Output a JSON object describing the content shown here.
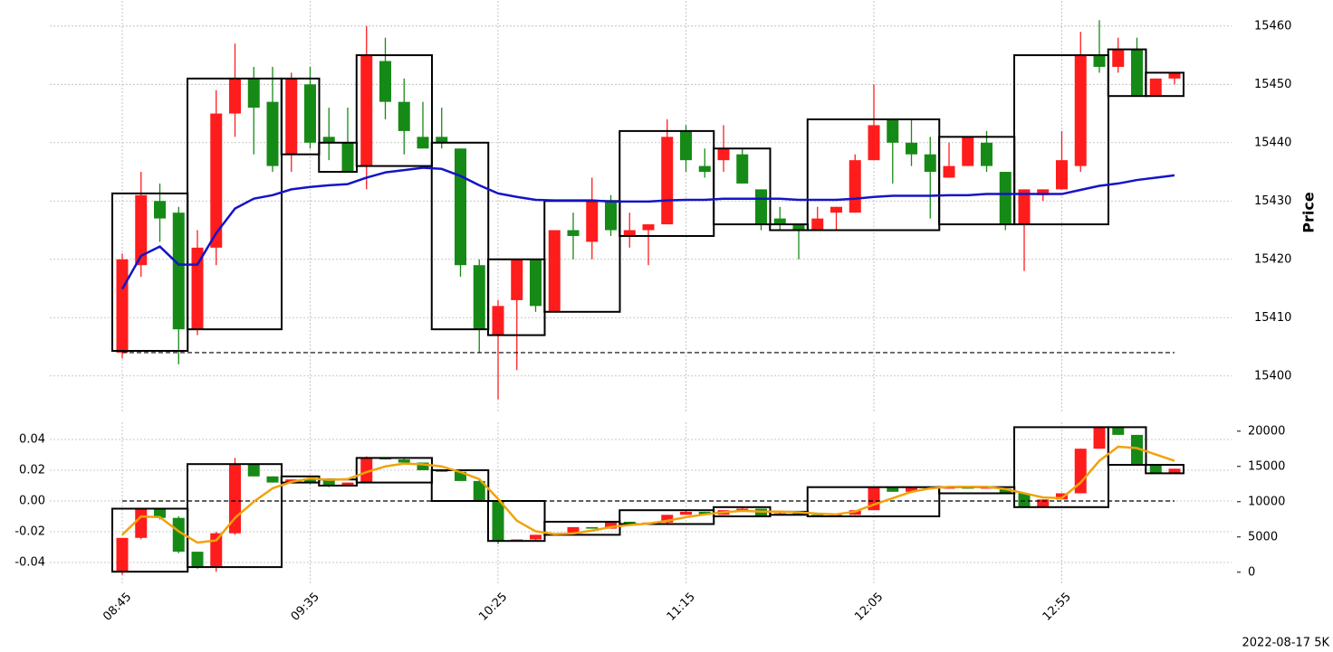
{
  "chart_data": [
    {
      "type": "candlestick",
      "ylabel": "Price",
      "up_color": "#ff1c1c",
      "down_color": "#168a16",
      "ylim": [
        15395,
        15464
      ],
      "yticks": [
        15400,
        15410,
        15420,
        15430,
        15440,
        15450,
        15460
      ],
      "grid": true,
      "ref_line": 15404,
      "open": [
        15404,
        15419,
        15430,
        15428,
        15408,
        15422,
        15445,
        15451,
        15447,
        15438,
        15450,
        15441,
        15440,
        15436,
        15454,
        15447,
        15441,
        15441,
        15439,
        15419,
        15407,
        15413,
        15420,
        15411,
        15425,
        15423,
        15430,
        15424,
        15425,
        15426,
        15442,
        15436,
        15437,
        15438,
        15432,
        15427,
        15426,
        15425,
        15428,
        15428,
        15437,
        15444,
        15440,
        15438,
        15434,
        15436,
        15440,
        15435,
        15426,
        15431,
        15432,
        15436,
        15455,
        15453,
        15456,
        15448,
        15451
      ],
      "high": [
        15421,
        15435,
        15433,
        15429,
        15425,
        15449,
        15457,
        15453,
        15453,
        15452,
        15453,
        15446,
        15446,
        15460,
        15458,
        15451,
        15447,
        15446,
        15439,
        15420,
        15413,
        15420,
        15420,
        15425,
        15428,
        15434,
        15431,
        15428,
        15426,
        15444,
        15443,
        15439,
        15443,
        15439,
        15432,
        15429,
        15426,
        15429,
        15429,
        15438,
        15450,
        15444,
        15444,
        15441,
        15440,
        15441,
        15442,
        15435,
        15432,
        15432,
        15442,
        15459,
        15461,
        15458,
        15458,
        15451,
        15452
      ],
      "low": [
        15403,
        15417,
        15423,
        15402,
        15407,
        15419,
        15441,
        15438,
        15435,
        15435,
        15439,
        15437,
        15435,
        15432,
        15444,
        15438,
        15439,
        15439,
        15417,
        15404,
        15396,
        15401,
        15411,
        15411,
        15420,
        15420,
        15424,
        15422,
        15419,
        15426,
        15435,
        15434,
        15435,
        15433,
        15425,
        15425,
        15420,
        15425,
        15425,
        15428,
        15437,
        15433,
        15436,
        15427,
        15434,
        15436,
        15435,
        15425,
        15418,
        15430,
        15432,
        15435,
        15452,
        15452,
        15448,
        15448,
        15450
      ],
      "close": [
        15420,
        15431,
        15427,
        15408,
        15422,
        15445,
        15451,
        15446,
        15436,
        15451,
        15440,
        15440,
        15435,
        15455,
        15447,
        15442,
        15439,
        15440,
        15419,
        15408,
        15412,
        15420,
        15412,
        15425,
        15424,
        15430,
        15425,
        15425,
        15426,
        15441,
        15437,
        15435,
        15439,
        15433,
        15426,
        15426,
        15425,
        15427,
        15429,
        15437,
        15443,
        15440,
        15438,
        15435,
        15436,
        15441,
        15436,
        15426,
        15432,
        15432,
        15437,
        15455,
        15453,
        15456,
        15448,
        15451,
        15452
      ],
      "series": [
        {
          "color": "#1414c8",
          "values": [
            15414.9,
            15420.6,
            15422.2,
            15419.1,
            15419.1,
            15424.5,
            15428.7,
            15430.4,
            15431,
            15432,
            15432.4,
            15432.7,
            15432.9,
            15434,
            15434.9,
            15435.3,
            15435.7,
            15435.5,
            15434.3,
            15432.7,
            15431.3,
            15430.7,
            15430.2,
            15430.1,
            15430.1,
            15430.1,
            15429.9,
            15429.9,
            15429.9,
            15430.1,
            15430.2,
            15430.2,
            15430.4,
            15430.4,
            15430.4,
            15430.4,
            15430.2,
            15430.2,
            15430.2,
            15430.4,
            15430.7,
            15430.9,
            15430.9,
            15430.9,
            15431,
            15431,
            15431.2,
            15431.2,
            15431.2,
            15431.2,
            15431.2,
            15431.9,
            15432.6,
            15433,
            15433.6,
            15434,
            15434.4
          ]
        }
      ],
      "boxes": [
        {
          "start": 0,
          "end": 3,
          "high": 15431.3,
          "low": 15404.3
        },
        {
          "start": 4,
          "end": 8,
          "high": 15451,
          "low": 15408
        },
        {
          "start": 9,
          "end": 10,
          "high": 15451,
          "low": 15438
        },
        {
          "start": 11,
          "end": 12,
          "high": 15440,
          "low": 15435
        },
        {
          "start": 13,
          "end": 16,
          "high": 15455,
          "low": 15436
        },
        {
          "start": 17,
          "end": 19,
          "high": 15440,
          "low": 15408
        },
        {
          "start": 20,
          "end": 22,
          "high": 15420,
          "low": 15407
        },
        {
          "start": 23,
          "end": 26,
          "high": 15430,
          "low": 15411
        },
        {
          "start": 27,
          "end": 31,
          "high": 15442,
          "low": 15424
        },
        {
          "start": 32,
          "end": 34,
          "high": 15439,
          "low": 15426
        },
        {
          "start": 35,
          "end": 36,
          "high": 15426,
          "low": 15425
        },
        {
          "start": 37,
          "end": 43,
          "high": 15444,
          "low": 15425
        },
        {
          "start": 44,
          "end": 47,
          "high": 15441,
          "low": 15426
        },
        {
          "start": 48,
          "end": 52,
          "high": 15455,
          "low": 15426
        },
        {
          "start": 53,
          "end": 54,
          "high": 15456,
          "low": 15448
        },
        {
          "start": 55,
          "end": 56,
          "high": 15452,
          "low": 15448
        }
      ]
    },
    {
      "type": "candlestick",
      "up_color": "#ff1c1c",
      "down_color": "#168a16",
      "caption": "2022-08-17 5K",
      "categories": [
        "08:45",
        null,
        null,
        null,
        null,
        null,
        null,
        null,
        null,
        null,
        "09:35",
        null,
        null,
        null,
        null,
        null,
        null,
        null,
        null,
        null,
        "10:25",
        null,
        null,
        null,
        null,
        null,
        null,
        null,
        null,
        null,
        "11:15",
        null,
        null,
        null,
        null,
        null,
        null,
        null,
        null,
        null,
        "12:05",
        null,
        null,
        null,
        null,
        null,
        null,
        null,
        null,
        null,
        "12:55",
        null,
        null,
        null,
        null,
        null,
        null
      ],
      "ylim": [
        -0.05,
        0.05
      ],
      "yticks": [
        -0.04,
        -0.02,
        {
          "value": 0,
          "label": "0.00"
        },
        0.02,
        0.04
      ],
      "y2lim": [
        -800,
        21000
      ],
      "y2ticks": [
        0,
        5000,
        10000,
        15000,
        20000
      ],
      "grid": true,
      "ref_line": 0,
      "open": [
        -0.046,
        -0.024,
        -0.005,
        -0.011,
        -0.033,
        -0.043,
        -0.021,
        0.024,
        0.016,
        0.012,
        0.014,
        0.014,
        0.01,
        0.012,
        0.028,
        0.027,
        0.025,
        0.02,
        0.019,
        0.013,
        0,
        -0.026,
        -0.025,
        -0.022,
        -0.021,
        -0.017,
        -0.018,
        -0.0135,
        -0.015,
        -0.014,
        -0.009,
        -0.007,
        -0.009,
        -0.007,
        -0.005,
        -0.009,
        -0.008,
        -0.009,
        -0.01,
        -0.009,
        -0.006,
        0.009,
        0.006,
        0.009,
        0.008,
        0.009,
        0.008,
        0.008,
        0.005,
        -0.0035,
        0.001,
        0.005,
        0.034,
        0.048,
        0.043,
        0.0235,
        0.018
      ],
      "high": [
        -0.024,
        -0.005,
        -0.005,
        -0.01,
        -0.033,
        -0.02,
        0.028,
        0.024,
        0.016,
        0.014,
        0.015,
        0.014,
        0.012,
        0.029,
        0.028,
        0.028,
        0.025,
        0.02,
        0.02,
        0.014,
        0,
        -0.025,
        -0.022,
        -0.021,
        -0.017,
        -0.017,
        -0.0135,
        -0.0135,
        -0.014,
        -0.009,
        -0.006,
        -0.007,
        -0.006,
        -0.004,
        -0.005,
        -0.007,
        -0.008,
        -0.009,
        -0.009,
        -0.006,
        0.009,
        0.009,
        0.009,
        0.009,
        0.009,
        0.009,
        0.009,
        0.008,
        0.005,
        0.001,
        0.005,
        0.034,
        0.048,
        0.048,
        0.043,
        0.0235,
        0.021
      ],
      "low": [
        -0.048,
        -0.025,
        -0.012,
        -0.034,
        -0.044,
        -0.046,
        -0.022,
        0.016,
        0.012,
        0.012,
        0.011,
        0.009,
        0.01,
        0.012,
        0.027,
        0.025,
        0.02,
        0.019,
        0.013,
        0,
        -0.028,
        -0.026,
        -0.026,
        -0.022,
        -0.021,
        -0.018,
        -0.018,
        -0.015,
        -0.015,
        -0.015,
        -0.009,
        -0.009,
        -0.009,
        -0.007,
        -0.01,
        -0.009,
        -0.009,
        -0.01,
        -0.01,
        -0.009,
        -0.006,
        0.006,
        0.006,
        0.008,
        0.008,
        0.008,
        0.008,
        0.005,
        -0.004,
        -0.0035,
        0.001,
        0.005,
        0.034,
        0.043,
        0.0235,
        0.018,
        0.018
      ],
      "close": [
        -0.024,
        -0.005,
        -0.011,
        -0.033,
        -0.043,
        -0.021,
        0.024,
        0.016,
        0.012,
        0.014,
        0.012,
        0.01,
        0.012,
        0.028,
        0.027,
        0.025,
        0.02,
        0.019,
        0.013,
        0,
        -0.026,
        -0.025,
        -0.022,
        -0.021,
        -0.017,
        -0.018,
        -0.0135,
        -0.015,
        -0.014,
        -0.009,
        -0.007,
        -0.009,
        -0.006,
        -0.005,
        -0.01,
        -0.008,
        -0.009,
        -0.01,
        -0.009,
        -0.006,
        0.009,
        0.006,
        0.009,
        0.008,
        0.009,
        0.008,
        0.009,
        0.005,
        -0.0035,
        0.001,
        0.005,
        0.034,
        0.048,
        0.043,
        0.0235,
        0.018,
        0.021
      ],
      "series": [
        {
          "color": "#f0a30a",
          "axis": "y2",
          "values": [
            5300,
            7900,
            7800,
            5800,
            4200,
            4500,
            7700,
            10000,
            11900,
            12800,
            13300,
            13100,
            13200,
            14200,
            15000,
            15400,
            15300,
            15000,
            14200,
            13200,
            10400,
            7300,
            5800,
            5400,
            5500,
            5900,
            6400,
            6700,
            6900,
            7300,
            7800,
            8200,
            8500,
            8700,
            8600,
            8600,
            8500,
            8300,
            8200,
            8600,
            9600,
            10500,
            11400,
            11900,
            12100,
            12100,
            12100,
            11800,
            11200,
            10600,
            10500,
            12700,
            15800,
            17800,
            17600,
            16700,
            15800
          ]
        }
      ],
      "boxes": [
        {
          "start": 0,
          "end": 3,
          "high": -0.005,
          "low": -0.046
        },
        {
          "start": 4,
          "end": 8,
          "high": 0.024,
          "low": -0.043
        },
        {
          "start": 9,
          "end": 10,
          "high": 0.016,
          "low": 0.012
        },
        {
          "start": 11,
          "end": 12,
          "high": 0.014,
          "low": 0.01
        },
        {
          "start": 13,
          "end": 16,
          "high": 0.028,
          "low": 0.012
        },
        {
          "start": 17,
          "end": 19,
          "high": 0.02,
          "low": 0
        },
        {
          "start": 20,
          "end": 22,
          "high": 0,
          "low": -0.026
        },
        {
          "start": 23,
          "end": 26,
          "high": -0.0135,
          "low": -0.022
        },
        {
          "start": 27,
          "end": 31,
          "high": -0.006,
          "low": -0.015
        },
        {
          "start": 32,
          "end": 34,
          "high": -0.004,
          "low": -0.01
        },
        {
          "start": 35,
          "end": 36,
          "high": -0.007,
          "low": -0.009
        },
        {
          "start": 37,
          "end": 43,
          "high": 0.009,
          "low": -0.01
        },
        {
          "start": 44,
          "end": 47,
          "high": 0.009,
          "low": 0.005
        },
        {
          "start": 48,
          "end": 52,
          "high": 0.048,
          "low": -0.004
        },
        {
          "start": 53,
          "end": 54,
          "high": 0.048,
          "low": 0.0235
        },
        {
          "start": 55,
          "end": 56,
          "high": 0.0235,
          "low": 0.018
        }
      ]
    }
  ]
}
